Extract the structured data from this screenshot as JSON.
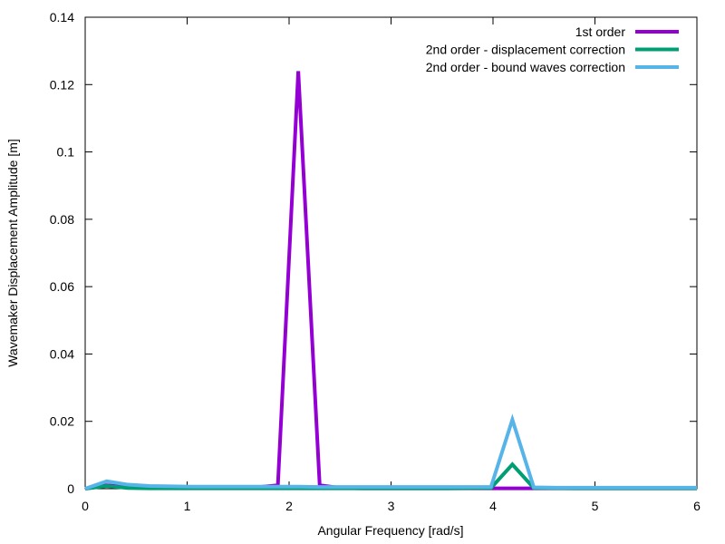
{
  "chart_data": {
    "type": "line",
    "title": "",
    "xlabel": "Angular Frequency [rad/s]",
    "ylabel": "Wavemaker Displacement Amplitude [m]",
    "xlim": [
      0,
      6
    ],
    "ylim": [
      0,
      0.14
    ],
    "xticks": [
      "0",
      "1",
      "2",
      "3",
      "4",
      "5",
      "6"
    ],
    "yticks": [
      "0",
      "0.02",
      "0.04",
      "0.06",
      "0.08",
      "0.1",
      "0.12",
      "0.14"
    ],
    "grid": false,
    "legend_position": "top-right",
    "series": [
      {
        "name": "1st order",
        "color": "#9400d3",
        "points": [
          [
            0,
            0
          ],
          [
            0.21,
            0.001
          ],
          [
            0.42,
            0.0005
          ],
          [
            0.63,
            0.0003
          ],
          [
            0.84,
            0.0003
          ],
          [
            1.05,
            0.0003
          ],
          [
            1.26,
            0.0003
          ],
          [
            1.47,
            0.0003
          ],
          [
            1.68,
            0.0004
          ],
          [
            1.89,
            0.001
          ],
          [
            2.09,
            0.124
          ],
          [
            2.3,
            0.001
          ],
          [
            2.51,
            0.0002
          ],
          [
            2.72,
            0.0001
          ],
          [
            2.93,
            0.0001
          ],
          [
            3.14,
            0.0001
          ],
          [
            3.35,
            0.0001
          ],
          [
            3.56,
            0.0001
          ],
          [
            3.77,
            0.0001
          ],
          [
            3.98,
            0.0001
          ],
          [
            4.19,
            0.0001
          ],
          [
            4.4,
            0.0001
          ],
          [
            4.61,
            0.0001
          ],
          [
            4.82,
            0.0001
          ],
          [
            5.03,
            0.0001
          ],
          [
            5.24,
            0.0001
          ],
          [
            5.45,
            0.0001
          ],
          [
            5.66,
            0.0001
          ],
          [
            5.87,
            0.0001
          ],
          [
            6.0,
            0.0001
          ]
        ]
      },
      {
        "name": "2nd order - displacement correction",
        "color": "#009e73",
        "points": [
          [
            0,
            0
          ],
          [
            0.21,
            0.0008
          ],
          [
            0.42,
            0.0002
          ],
          [
            0.63,
            0.0001
          ],
          [
            1.05,
            0.0001
          ],
          [
            1.47,
            0.0001
          ],
          [
            1.89,
            0.0001
          ],
          [
            2.3,
            0.0001
          ],
          [
            2.72,
            0.0001
          ],
          [
            3.14,
            0.0001
          ],
          [
            3.56,
            0.0001
          ],
          [
            3.98,
            0.0002
          ],
          [
            4.19,
            0.0072
          ],
          [
            4.4,
            0.0002
          ],
          [
            4.82,
            0.0001
          ],
          [
            5.24,
            0.0001
          ],
          [
            5.66,
            0.0001
          ],
          [
            6.0,
            0.0001
          ]
        ]
      },
      {
        "name": "2nd order - bound waves correction",
        "color": "#56b4e9",
        "points": [
          [
            0,
            0
          ],
          [
            0.21,
            0.0022
          ],
          [
            0.42,
            0.0012
          ],
          [
            0.63,
            0.0008
          ],
          [
            0.84,
            0.0007
          ],
          [
            1.05,
            0.0006
          ],
          [
            1.26,
            0.0006
          ],
          [
            1.47,
            0.0006
          ],
          [
            1.68,
            0.0006
          ],
          [
            1.89,
            0.0006
          ],
          [
            2.09,
            0.0006
          ],
          [
            2.3,
            0.0005
          ],
          [
            2.51,
            0.0005
          ],
          [
            2.72,
            0.0005
          ],
          [
            2.93,
            0.0005
          ],
          [
            3.14,
            0.0005
          ],
          [
            3.35,
            0.0005
          ],
          [
            3.56,
            0.0005
          ],
          [
            3.77,
            0.0005
          ],
          [
            3.98,
            0.0005
          ],
          [
            4.19,
            0.0205
          ],
          [
            4.4,
            0.0004
          ],
          [
            4.61,
            0.0003
          ],
          [
            4.82,
            0.0003
          ],
          [
            5.03,
            0.0003
          ],
          [
            5.24,
            0.0003
          ],
          [
            5.45,
            0.0003
          ],
          [
            5.66,
            0.0003
          ],
          [
            5.87,
            0.0003
          ],
          [
            6.0,
            0.0003
          ]
        ]
      }
    ]
  }
}
